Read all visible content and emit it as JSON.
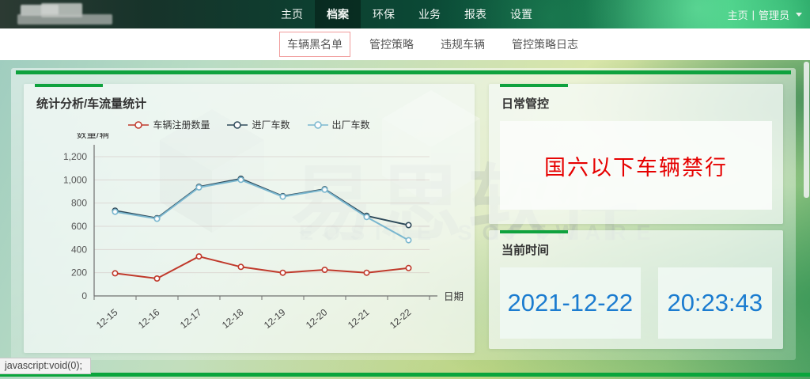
{
  "topnav": {
    "menu": [
      "主页",
      "档案",
      "环保",
      "业务",
      "报表",
      "设置"
    ],
    "active_index": 1,
    "user_home": "主页",
    "divider": "|",
    "user_name": "管理员"
  },
  "subnav": {
    "items": [
      "车辆黑名单",
      "管控策略",
      "违规车辆",
      "管控策略日志"
    ],
    "active_index": 0
  },
  "watermark": {
    "cn": "易思软件",
    "en": "EOSINE SOFTWARE"
  },
  "chart_panel": {
    "title": "统计分析/车流量统计"
  },
  "chart_data": {
    "type": "line",
    "categories": [
      "12-15",
      "12-16",
      "12-17",
      "12-18",
      "12-19",
      "12-20",
      "12-21",
      "12-22"
    ],
    "series": [
      {
        "name": "车辆注册数量",
        "color": "#c0392b",
        "values": [
          195,
          150,
          340,
          250,
          200,
          225,
          200,
          240
        ]
      },
      {
        "name": "进厂车数",
        "color": "#2e4a5a",
        "values": [
          735,
          670,
          940,
          1010,
          860,
          920,
          690,
          610
        ]
      },
      {
        "name": "出厂车数",
        "color": "#7ab7cf",
        "values": [
          725,
          665,
          935,
          1000,
          855,
          915,
          680,
          480
        ]
      }
    ],
    "title": "统计分析/车流量统计",
    "xlabel": "日期",
    "ylabel": "数量/辆",
    "ylim": [
      0,
      1200
    ],
    "ytick_step": 200,
    "grid": true,
    "legend_position": "top"
  },
  "daily_panel": {
    "title": "日常管控",
    "notice": "国六以下车辆禁行"
  },
  "time_panel": {
    "title": "当前时间",
    "date": "2021-12-22",
    "time": "20:23:43"
  },
  "statusbar": {
    "text": "javascript:void(0);"
  },
  "colors": {
    "accent_green": "#0fa23e",
    "notice_red": "#e60000",
    "time_blue": "#1b7cd0"
  }
}
